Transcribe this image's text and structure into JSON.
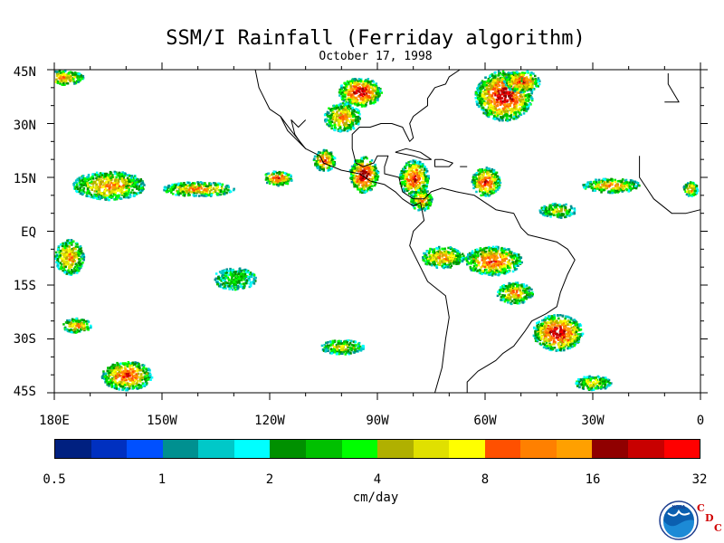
{
  "title": "SSM/I Rainfall (Ferriday algorithm)",
  "subtitle": "October 17, 1998",
  "map": {
    "lon_range": [
      -180,
      0
    ],
    "lat_range": [
      -45,
      45
    ],
    "lat_labels": [
      "45N",
      "30N",
      "15N",
      "EQ",
      "15S",
      "30S",
      "45S"
    ],
    "lon_labels": [
      "180E",
      "150W",
      "120W",
      "90W",
      "60W",
      "30W",
      "0"
    ]
  },
  "colorbar": {
    "colors": [
      "#002080",
      "#0030c0",
      "#0050ff",
      "#009090",
      "#00c8c8",
      "#00ffff",
      "#009000",
      "#00c000",
      "#00ff00",
      "#b0b000",
      "#e0e000",
      "#ffff00",
      "#ff5000",
      "#ff8000",
      "#ffa000",
      "#900000",
      "#c80000",
      "#ff0000"
    ],
    "tick_labels": [
      "0.5",
      "1",
      "2",
      "4",
      "8",
      "16",
      "32"
    ],
    "unit": "cm/day"
  },
  "logo": {
    "icon": "noaa-seal",
    "text": "NOAA",
    "cdc_letters": [
      "C",
      "D",
      "C"
    ]
  },
  "rain_clusters": [
    {
      "lon": -178,
      "lat": 43,
      "rlon": 6,
      "rlat": 2,
      "max": 3
    },
    {
      "lon": -95,
      "lat": 39,
      "rlon": 6,
      "rlat": 4,
      "max": 5
    },
    {
      "lon": -100,
      "lat": 32,
      "rlon": 5,
      "rlat": 4,
      "max": 3
    },
    {
      "lon": -55,
      "lat": 38,
      "rlon": 8,
      "rlat": 7,
      "max": 5
    },
    {
      "lon": -50,
      "lat": 42,
      "rlon": 5,
      "rlat": 3,
      "max": 4
    },
    {
      "lon": -165,
      "lat": 13,
      "rlon": 10,
      "rlat": 4,
      "max": 3
    },
    {
      "lon": -140,
      "lat": 12,
      "rlon": 10,
      "rlat": 2,
      "max": 3
    },
    {
      "lon": -118,
      "lat": 15,
      "rlon": 4,
      "rlat": 2,
      "max": 4
    },
    {
      "lon": -105,
      "lat": 20,
      "rlon": 3,
      "rlat": 3,
      "max": 4
    },
    {
      "lon": -94,
      "lat": 16,
      "rlon": 4,
      "rlat": 5,
      "max": 5
    },
    {
      "lon": -80,
      "lat": 15,
      "rlon": 4,
      "rlat": 5,
      "max": 4
    },
    {
      "lon": -78,
      "lat": 9,
      "rlon": 3,
      "rlat": 3,
      "max": 3
    },
    {
      "lon": -60,
      "lat": 14,
      "rlon": 4,
      "rlat": 4,
      "max": 4
    },
    {
      "lon": -25,
      "lat": 13,
      "rlon": 8,
      "rlat": 2,
      "max": 3
    },
    {
      "lon": -40,
      "lat": 6,
      "rlon": 5,
      "rlat": 2,
      "max": 2
    },
    {
      "lon": -3,
      "lat": 12,
      "rlon": 2,
      "rlat": 2,
      "max": 3
    },
    {
      "lon": -58,
      "lat": -8,
      "rlon": 8,
      "rlat": 4,
      "max": 4
    },
    {
      "lon": -72,
      "lat": -7,
      "rlon": 6,
      "rlat": 3,
      "max": 3
    },
    {
      "lon": -40,
      "lat": -28,
      "rlon": 7,
      "rlat": 5,
      "max": 5
    },
    {
      "lon": -52,
      "lat": -17,
      "rlon": 5,
      "rlat": 3,
      "max": 3
    },
    {
      "lon": -176,
      "lat": -7,
      "rlon": 4,
      "rlat": 5,
      "max": 3
    },
    {
      "lon": -174,
      "lat": -26,
      "rlon": 4,
      "rlat": 2,
      "max": 3
    },
    {
      "lon": -160,
      "lat": -40,
      "rlon": 7,
      "rlat": 4,
      "max": 4
    },
    {
      "lon": -100,
      "lat": -32,
      "rlon": 6,
      "rlat": 2,
      "max": 2
    },
    {
      "lon": -30,
      "lat": -42,
      "rlon": 5,
      "rlat": 2,
      "max": 2
    },
    {
      "lon": -130,
      "lat": -13,
      "rlon": 6,
      "rlat": 3,
      "max": 1
    }
  ]
}
